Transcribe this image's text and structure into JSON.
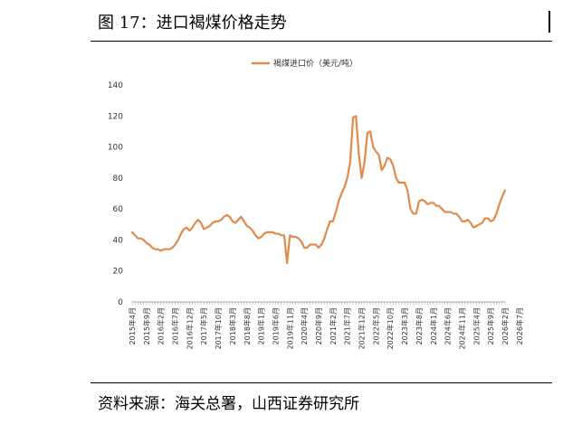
{
  "figure": {
    "title": "图 17：进口褐煤价格走势",
    "source": "资料来源：海关总署，山西证券研究所"
  },
  "colors": {
    "series": "#e08a4b",
    "axis": "#aaaaaa"
  },
  "chart_data": {
    "type": "line",
    "title": "",
    "xlabel": "",
    "ylabel": "",
    "ylim": [
      0,
      140
    ],
    "yticks": [
      0,
      20,
      40,
      60,
      80,
      100,
      120,
      140
    ],
    "grid": false,
    "legend": "top-center",
    "x_start": "2015年4月",
    "x_tick_labels": [
      "2015年4月",
      "2015年9月",
      "2016年2月",
      "2016年7月",
      "2016年12月",
      "2017年5月",
      "2017年10月",
      "2018年3月",
      "2018年8月",
      "2019年1月",
      "2019年6月",
      "2019年11月",
      "2020年4月",
      "2020年9月",
      "2021年2月",
      "2021年7月",
      "2021年12月",
      "2022年5月",
      "2022年10月",
      "2023年3月",
      "2023年8月",
      "2024年1月",
      "2024年6月",
      "2024年11月",
      "2025年4月",
      "2025年9月",
      "2026年2月",
      "2026年7月"
    ],
    "series": [
      {
        "name": "褐煤进口价（美元/吨）",
        "values": [
          45,
          43,
          41,
          41,
          40,
          38,
          37,
          35,
          34,
          34,
          33,
          34,
          34,
          34,
          35,
          37,
          40,
          44,
          47,
          48,
          46,
          48,
          51,
          53,
          51,
          47,
          48,
          49,
          51,
          52,
          52,
          53,
          55,
          56,
          55,
          52,
          51,
          53,
          55,
          52,
          49,
          48,
          46,
          43,
          41,
          42,
          44,
          45,
          45,
          45,
          44,
          44,
          43,
          43,
          25,
          43,
          42,
          42,
          41,
          39,
          35,
          35,
          37,
          37,
          37,
          35,
          37,
          41,
          47,
          52,
          52,
          58,
          65,
          70,
          74,
          80,
          90,
          119,
          120,
          96,
          80,
          90,
          109,
          110,
          100,
          97,
          95,
          85,
          88,
          93,
          92,
          88,
          80,
          77,
          77,
          77,
          72,
          60,
          57,
          57,
          65,
          66,
          65,
          63,
          64,
          64,
          62,
          62,
          60,
          58,
          58,
          58,
          57,
          57,
          55,
          52,
          52,
          53,
          51,
          48,
          49,
          50,
          51,
          54,
          54,
          52,
          53,
          57,
          63,
          68,
          72
        ]
      }
    ]
  }
}
